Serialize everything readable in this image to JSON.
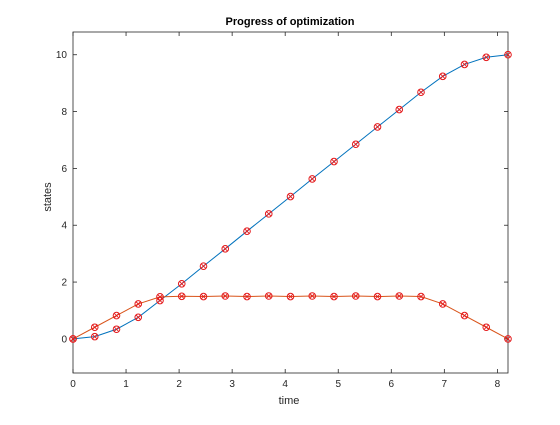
{
  "chart_data": {
    "type": "line",
    "title": "Progress of optimization",
    "xlabel": "time",
    "ylabel": "states",
    "xlim": [
      0,
      8.2
    ],
    "ylim": [
      -1.2,
      10.8
    ],
    "xticks": [
      0,
      1,
      2,
      3,
      4,
      5,
      6,
      7,
      8
    ],
    "yticks": [
      0,
      2,
      4,
      6,
      8,
      10
    ],
    "grid": false,
    "legend": "none",
    "colors": {
      "position": "#0072bd",
      "velocity": "#d95319",
      "markers": "#e41a1c"
    },
    "marker": "circle-x",
    "series": [
      {
        "x": [
          0,
          0.41,
          0.82,
          1.23,
          1.64,
          2.05,
          2.46,
          2.87,
          3.28,
          3.69,
          4.1,
          4.51,
          4.92,
          5.33,
          5.74,
          6.15,
          6.56,
          6.97,
          7.38,
          7.79,
          8.2
        ],
        "values": [
          0,
          0.08,
          0.34,
          0.76,
          1.35,
          1.94,
          2.56,
          3.17,
          3.79,
          4.4,
          5.01,
          5.63,
          6.24,
          6.85,
          7.46,
          8.07,
          8.68,
          9.24,
          9.66,
          9.91,
          10.0
        ]
      },
      {
        "x": [
          0,
          0.41,
          0.82,
          1.23,
          1.64,
          2.05,
          2.46,
          2.87,
          3.28,
          3.69,
          4.1,
          4.51,
          4.92,
          5.33,
          5.74,
          6.15,
          6.56,
          6.97,
          7.38,
          7.79,
          8.2
        ],
        "values": [
          0,
          0.41,
          0.82,
          1.23,
          1.48,
          1.5,
          1.49,
          1.51,
          1.49,
          1.51,
          1.49,
          1.51,
          1.49,
          1.51,
          1.49,
          1.51,
          1.49,
          1.23,
          0.82,
          0.41,
          0
        ]
      }
    ]
  }
}
